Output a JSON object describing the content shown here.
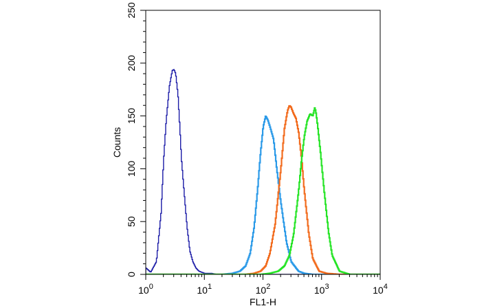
{
  "chart_data": {
    "type": "line",
    "title": "",
    "xlabel": "FL1-H",
    "ylabel": "Counts",
    "x_scale": "log",
    "xlim": [
      1,
      10000
    ],
    "ylim": [
      0,
      250
    ],
    "grid": false,
    "legend": "none",
    "y_ticks": [
      {
        "value": 0,
        "label": "0"
      },
      {
        "value": 50,
        "label": "50"
      },
      {
        "value": 100,
        "label": "100"
      },
      {
        "value": 150,
        "label": "150"
      },
      {
        "value": 200,
        "label": "200"
      },
      {
        "value": 250,
        "label": "250"
      }
    ],
    "x_ticks": [
      {
        "value": 1,
        "base": "10",
        "exp": "0"
      },
      {
        "value": 10,
        "base": "10",
        "exp": "1"
      },
      {
        "value": 100,
        "base": "10",
        "exp": "2"
      },
      {
        "value": 1000,
        "base": "10",
        "exp": "3"
      },
      {
        "value": 10000,
        "base": "10",
        "exp": "4"
      }
    ],
    "series": [
      {
        "color": "#1a1aa6",
        "x": [
          1.0,
          1.2,
          1.5,
          1.8,
          2.0,
          2.2,
          2.5,
          2.8,
          3.0,
          3.2,
          3.5,
          3.8,
          4.0,
          4.5,
          5.0,
          5.6,
          6.3,
          7.1,
          8.0,
          10,
          13,
          16,
          20,
          30,
          50
        ],
        "y": [
          6,
          2,
          12,
          58,
          110,
          145,
          178,
          193,
          194,
          190,
          170,
          135,
          110,
          75,
          45,
          22,
          12,
          6,
          3,
          1,
          1,
          0,
          0,
          0,
          0
        ]
      },
      {
        "color": "#2b9ae8",
        "x": [
          20,
          30,
          40,
          50,
          60,
          70,
          80,
          90,
          100,
          110,
          120,
          130,
          150,
          170,
          200,
          250,
          300,
          400,
          500,
          700
        ],
        "y": [
          0,
          1,
          3,
          8,
          20,
          45,
          80,
          115,
          140,
          150,
          146,
          140,
          128,
          100,
          68,
          30,
          12,
          3,
          1,
          0
        ]
      },
      {
        "color": "#f26b1d",
        "x": [
          50,
          70,
          90,
          110,
          130,
          160,
          200,
          230,
          260,
          280,
          300,
          330,
          360,
          400,
          450,
          500,
          600,
          700,
          900,
          1200,
          2000
        ],
        "y": [
          0,
          1,
          3,
          8,
          20,
          48,
          100,
          138,
          155,
          160,
          158,
          152,
          148,
          135,
          110,
          80,
          38,
          15,
          3,
          1,
          0
        ]
      },
      {
        "color": "#26e426",
        "x": [
          90,
          130,
          180,
          230,
          280,
          330,
          400,
          450,
          500,
          560,
          630,
          700,
          760,
          800,
          850,
          950,
          1100,
          1300,
          1500,
          2000,
          3000
        ],
        "y": [
          0,
          1,
          3,
          8,
          18,
          38,
          78,
          108,
          130,
          145,
          152,
          150,
          158,
          152,
          140,
          115,
          78,
          40,
          18,
          3,
          0
        ]
      }
    ]
  }
}
